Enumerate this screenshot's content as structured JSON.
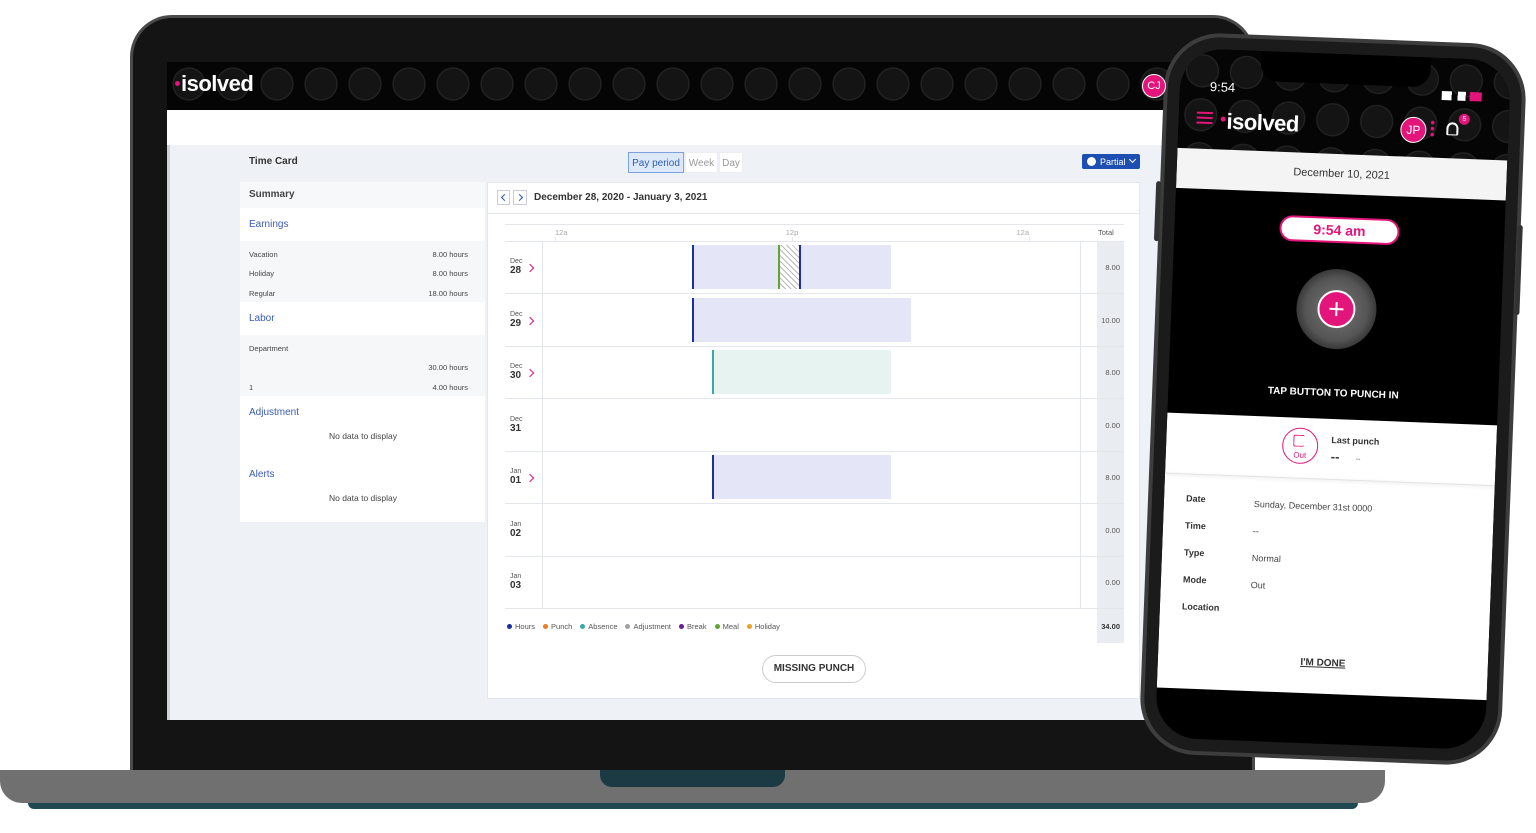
{
  "laptop": {
    "header": {
      "logo": "isolved",
      "avatar": "CJ"
    },
    "title": "Time Card",
    "views": [
      {
        "label": "Pay period",
        "active": true
      },
      {
        "label": "Week",
        "active": false
      },
      {
        "label": "Day",
        "active": false
      }
    ],
    "filter": "Partial",
    "summary": {
      "title": "Summary",
      "sections": [
        {
          "title": "Earnings",
          "rows": [
            {
              "label": "Vacation",
              "value": "8.00 hours"
            },
            {
              "label": "Holiday",
              "value": "8.00 hours"
            },
            {
              "label": "Regular",
              "value": "18.00 hours"
            }
          ]
        },
        {
          "title": "Labor",
          "rows": [
            {
              "label": "Department"
            },
            {
              "value": "30.00 hours"
            },
            {
              "label": "1",
              "value": "4.00 hours"
            }
          ]
        },
        {
          "title": "Adjustment",
          "empty": "No data to display"
        },
        {
          "title": "Alerts",
          "empty": "No data to display"
        }
      ]
    },
    "timecard": {
      "range": "December 28, 2020 - January 3, 2021",
      "axis": [
        {
          "value": 0,
          "label": "12a"
        },
        {
          "value": 12,
          "label": "12p"
        },
        {
          "value": 24,
          "label": "12a"
        }
      ],
      "total_label": "Total",
      "days": [
        {
          "month": "Dec",
          "day": "28",
          "expandable": true,
          "total": "8.00",
          "spans": [
            {
              "start": 7,
              "end": 17,
              "fill": "#e4e6f7"
            }
          ],
          "breaks": [
            {
              "start": 11.35,
              "end": 12.4
            }
          ],
          "punches": [
            {
              "at": 7,
              "color": "#1a2fa8"
            },
            {
              "at": 11.35,
              "color": "#5aa832"
            },
            {
              "at": 12.4,
              "color": "#1a2fa8"
            }
          ]
        },
        {
          "month": "Dec",
          "day": "29",
          "expandable": true,
          "total": "10.00",
          "spans": [
            {
              "start": 7,
              "end": 18,
              "fill": "#e4e6f7"
            }
          ],
          "breaks": [],
          "punches": [
            {
              "at": 7,
              "color": "#1a2fa8"
            }
          ]
        },
        {
          "month": "Dec",
          "day": "30",
          "expandable": true,
          "total": "8.00",
          "spans": [
            {
              "start": 8,
              "end": 17,
              "fill": "#e6f3f1"
            }
          ],
          "breaks": [],
          "punches": [
            {
              "at": 8,
              "color": "#3aa8a8"
            }
          ]
        },
        {
          "month": "Dec",
          "day": "31",
          "expandable": false,
          "total": "0.00",
          "spans": [],
          "breaks": [],
          "punches": []
        },
        {
          "month": "Jan",
          "day": "01",
          "expandable": true,
          "total": "8.00",
          "spans": [
            {
              "start": 8,
              "end": 17,
              "fill": "#e4e6f7"
            }
          ],
          "breaks": [],
          "punches": [
            {
              "at": 8,
              "color": "#1a2fa8"
            }
          ]
        },
        {
          "month": "Jan",
          "day": "02",
          "expandable": false,
          "total": "0.00",
          "spans": [],
          "breaks": [],
          "punches": []
        },
        {
          "month": "Jan",
          "day": "03",
          "expandable": false,
          "total": "0.00",
          "spans": [],
          "breaks": [],
          "punches": []
        }
      ],
      "legend": [
        {
          "name": "Hours",
          "color": "#1a2fa8"
        },
        {
          "name": "Punch",
          "color": "#f07b22"
        },
        {
          "name": "Absence",
          "color": "#3aa8a8"
        },
        {
          "name": "Adjustment",
          "color": "#a0a0a0"
        },
        {
          "name": "Break",
          "color": "#6a1b9a"
        },
        {
          "name": "Meal",
          "color": "#5aa832"
        },
        {
          "name": "Holiday",
          "color": "#f0a020"
        }
      ],
      "grand_total": "34.00",
      "action": "MISSING PUNCH"
    }
  },
  "phone": {
    "status_time": "9:54",
    "logo": "isolved",
    "avatar": "JP",
    "notifications": "5",
    "date": "December 10, 2021",
    "clock": "9:54 am",
    "prompt": "TAP BUTTON TO PUNCH IN",
    "last_punch": {
      "direction": "Out",
      "label": "Last punch",
      "time": "--",
      "detail": "--"
    },
    "details": [
      {
        "label": "Date",
        "value": "Sunday, December 31st 0000"
      },
      {
        "label": "Time",
        "value": "--"
      },
      {
        "label": "Type",
        "value": "Normal"
      },
      {
        "label": "Mode",
        "value": "Out"
      },
      {
        "label": "Location"
      }
    ],
    "done": "I'M DONE"
  }
}
